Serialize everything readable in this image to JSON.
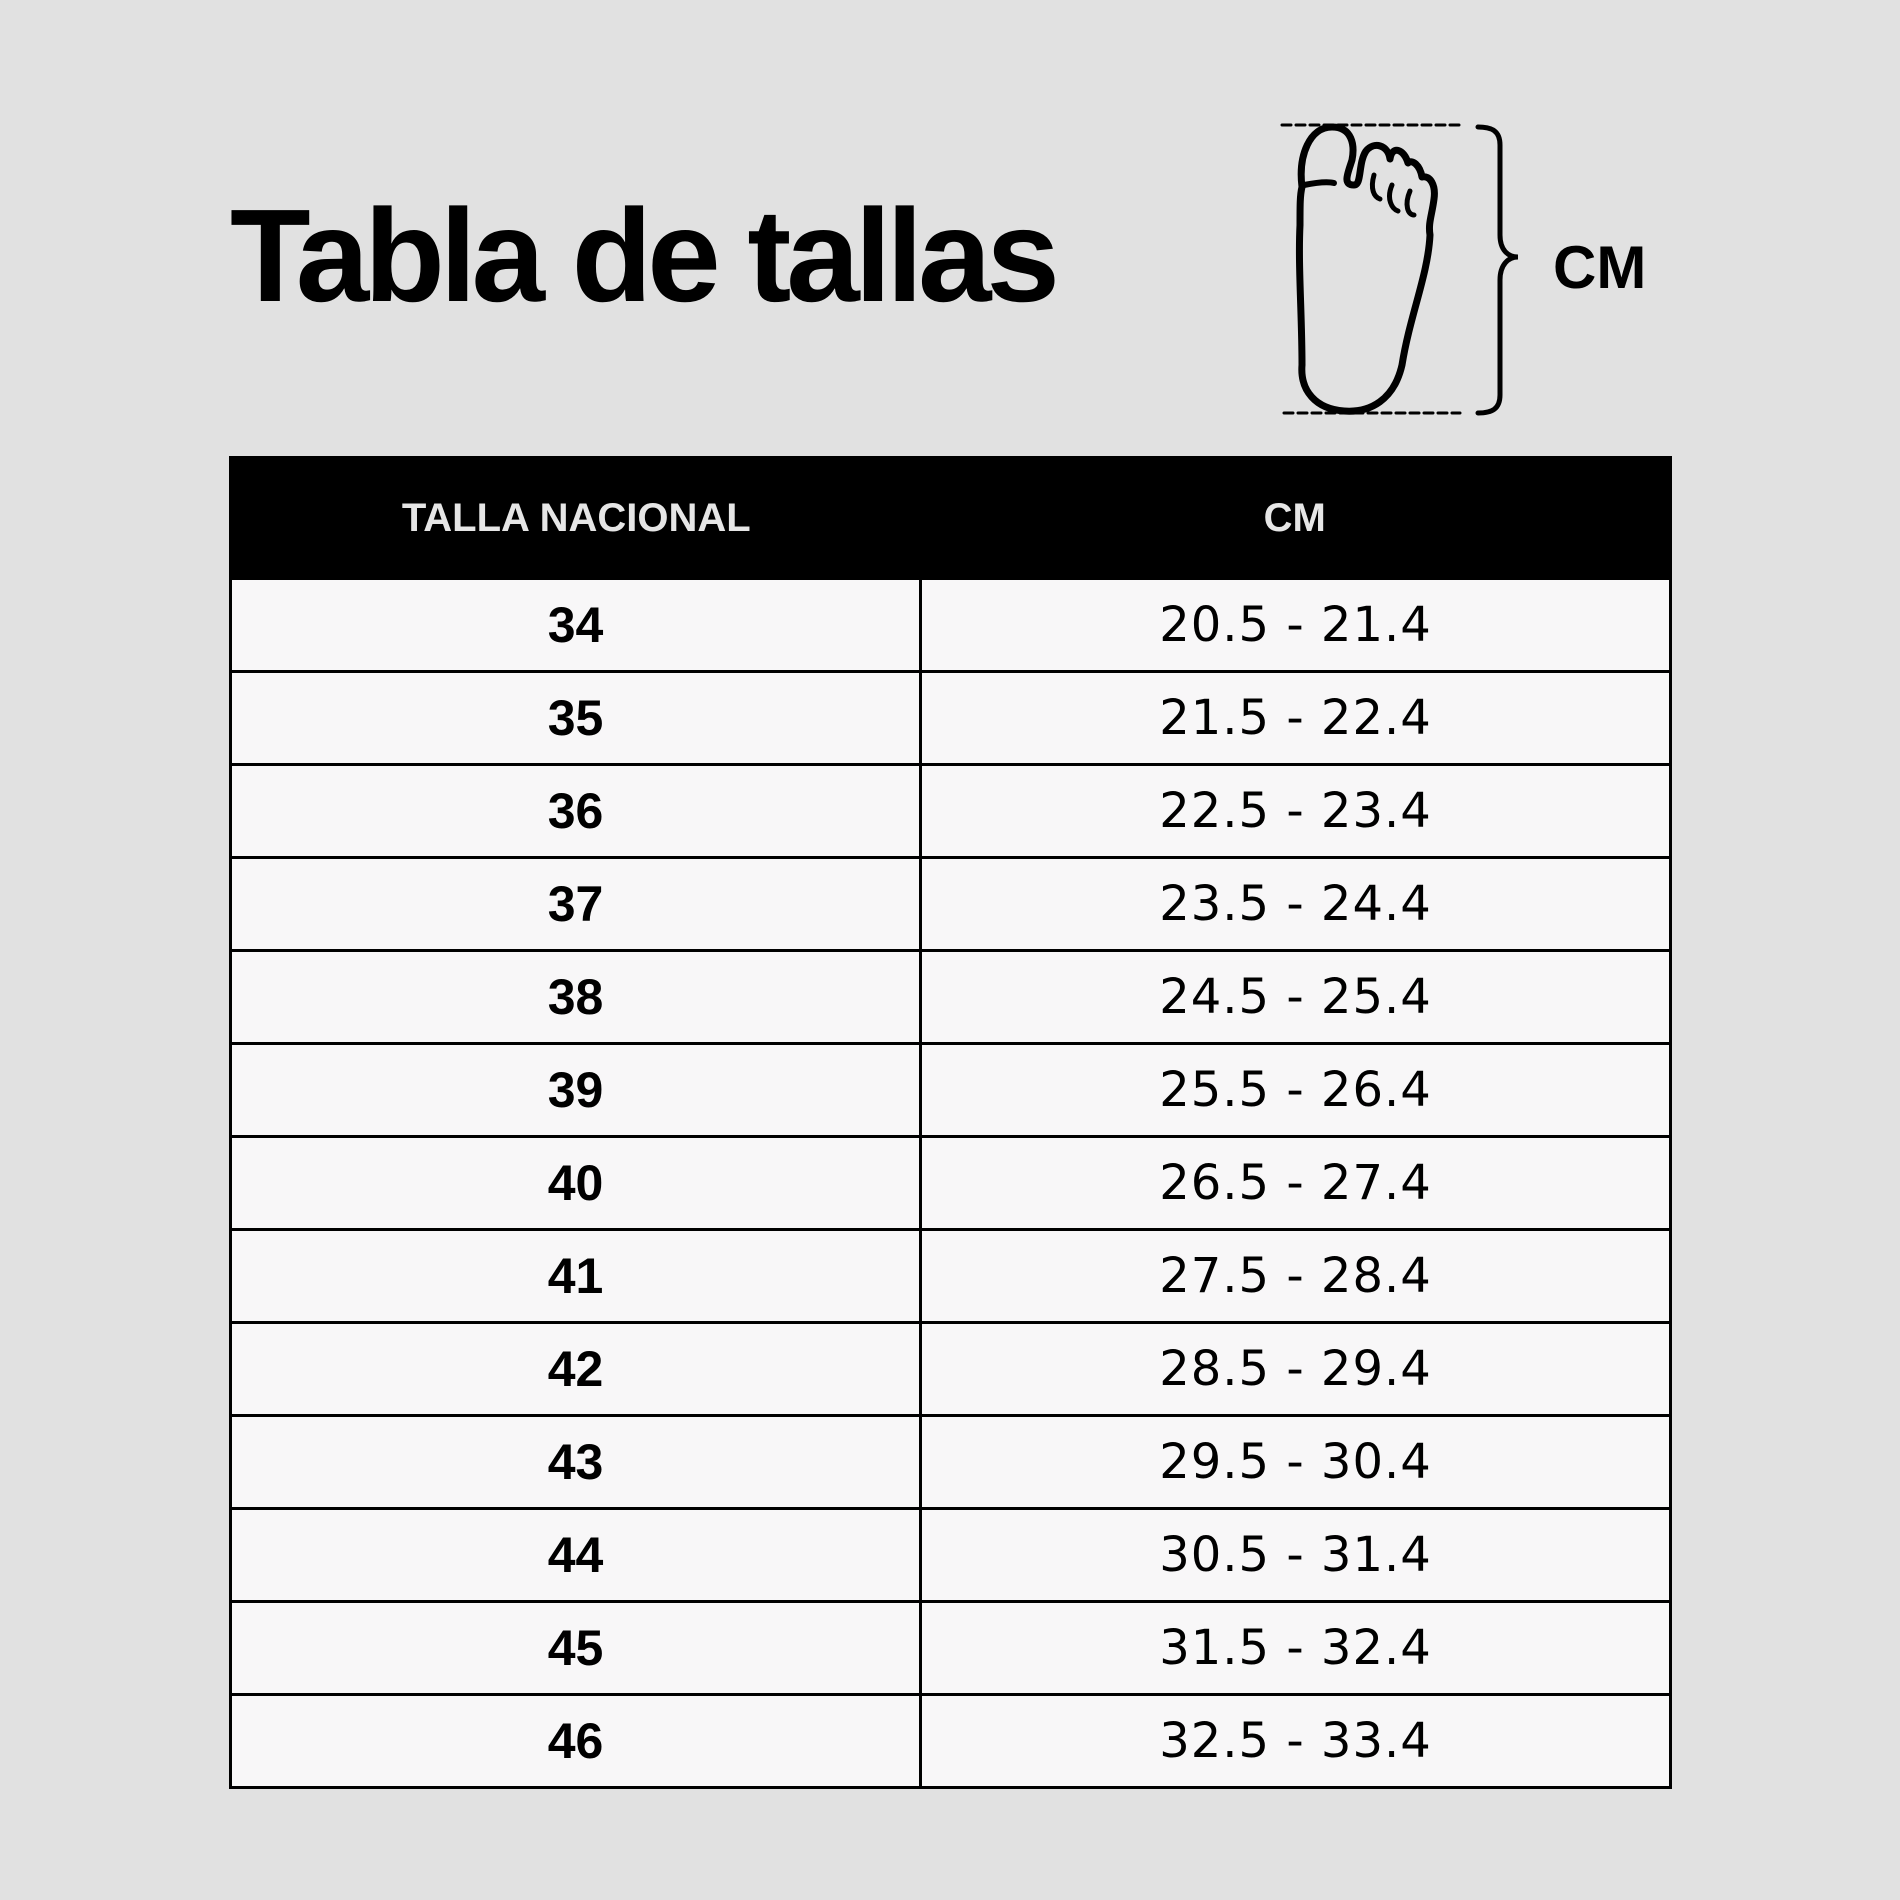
{
  "title": "Tabla de tallas",
  "diagram": {
    "icon": "foot-outline-icon",
    "unit_label": "CM"
  },
  "table": {
    "headers": [
      "TALLA NACIONAL",
      "CM"
    ],
    "rows": [
      {
        "size": "34",
        "cm": "20.5 - 21.4"
      },
      {
        "size": "35",
        "cm": "21.5 - 22.4"
      },
      {
        "size": "36",
        "cm": "22.5 - 23.4"
      },
      {
        "size": "37",
        "cm": "23.5 - 24.4"
      },
      {
        "size": "38",
        "cm": "24.5 - 25.4"
      },
      {
        "size": "39",
        "cm": "25.5 - 26.4"
      },
      {
        "size": "40",
        "cm": "26.5 - 27.4"
      },
      {
        "size": "41",
        "cm": "27.5 - 28.4"
      },
      {
        "size": "42",
        "cm": "28.5 - 29.4"
      },
      {
        "size": "43",
        "cm": "29.5 - 30.4"
      },
      {
        "size": "44",
        "cm": "30.5 - 31.4"
      },
      {
        "size": "45",
        "cm": "31.5 - 32.4"
      },
      {
        "size": "46",
        "cm": "32.5 - 33.4"
      }
    ]
  },
  "colors": {
    "background": "#e1e1e1",
    "header_bg": "#000000",
    "header_text": "#e6e6e6",
    "cell_bg": "#f8f7f8"
  }
}
